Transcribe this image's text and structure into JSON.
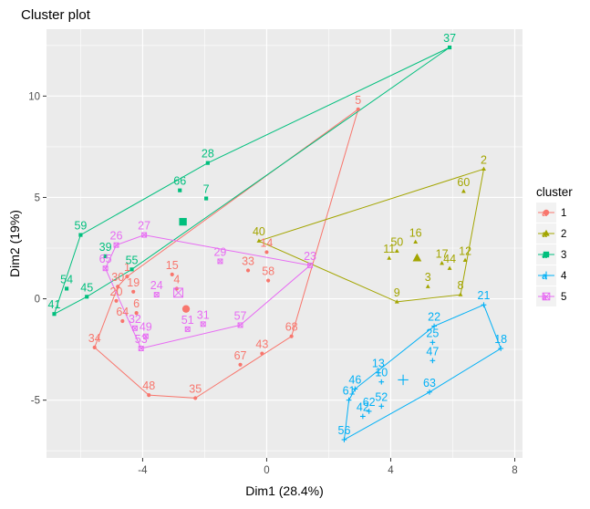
{
  "chart_data": {
    "type": "scatter",
    "title": "Cluster plot",
    "xlabel": "Dim1 (28.4%)",
    "ylabel": "Dim2 (19%)",
    "xlim": [
      -7.1,
      8.25
    ],
    "ylim": [
      -7.85,
      13.3
    ],
    "x_ticks": [
      -4,
      0,
      4,
      8
    ],
    "y_ticks": [
      -5,
      0,
      5,
      10
    ],
    "grid": true,
    "legend": {
      "title": "cluster",
      "position": "right",
      "entries": [
        "1",
        "2",
        "3",
        "4",
        "5"
      ]
    },
    "series": [
      {
        "name": "1",
        "color": "#F8766D",
        "marker": "circle",
        "centroid": [
          -2.6,
          -0.5
        ],
        "points": [
          {
            "label": "5",
            "x": 2.95,
            "y": 9.35
          },
          {
            "label": "14",
            "x": 0.0,
            "y": 2.3
          },
          {
            "label": "33",
            "x": -0.6,
            "y": 1.4
          },
          {
            "label": "58",
            "x": 0.05,
            "y": 0.9
          },
          {
            "label": "15",
            "x": -3.05,
            "y": 1.2
          },
          {
            "label": "1",
            "x": -4.5,
            "y": 1.1
          },
          {
            "label": "4",
            "x": -2.9,
            "y": 0.5
          },
          {
            "label": "30",
            "x": -4.8,
            "y": 0.6
          },
          {
            "label": "19",
            "x": -4.3,
            "y": 0.35
          },
          {
            "label": "20",
            "x": -4.85,
            "y": -0.1
          },
          {
            "label": "6",
            "x": -4.2,
            "y": -0.7
          },
          {
            "label": "64",
            "x": -4.65,
            "y": -1.1
          },
          {
            "label": "34",
            "x": -5.55,
            "y": -2.4
          },
          {
            "label": "48",
            "x": -3.8,
            "y": -4.75
          },
          {
            "label": "35",
            "x": -2.3,
            "y": -4.9
          },
          {
            "label": "67",
            "x": -0.85,
            "y": -3.25
          },
          {
            "label": "43",
            "x": -0.15,
            "y": -2.7
          },
          {
            "label": "68",
            "x": 0.8,
            "y": -1.85
          }
        ]
      },
      {
        "name": "2",
        "color": "#A3A500",
        "marker": "triangle",
        "centroid": [
          4.85,
          2.0
        ],
        "points": [
          {
            "label": "2",
            "x": 7.0,
            "y": 6.4
          },
          {
            "label": "60",
            "x": 6.35,
            "y": 5.3
          },
          {
            "label": "40",
            "x": -0.25,
            "y": 2.85
          },
          {
            "label": "16",
            "x": 4.8,
            "y": 2.8
          },
          {
            "label": "50",
            "x": 4.2,
            "y": 2.35
          },
          {
            "label": "11",
            "x": 3.95,
            "y": 2.0
          },
          {
            "label": "12",
            "x": 6.4,
            "y": 1.9
          },
          {
            "label": "17",
            "x": 5.65,
            "y": 1.75
          },
          {
            "label": "44",
            "x": 5.9,
            "y": 1.5
          },
          {
            "label": "3",
            "x": 5.2,
            "y": 0.6
          },
          {
            "label": "8",
            "x": 6.25,
            "y": 0.2
          },
          {
            "label": "9",
            "x": 4.2,
            "y": -0.15
          }
        ]
      },
      {
        "name": "3",
        "color": "#00BF7D",
        "marker": "square",
        "centroid": [
          -2.7,
          3.8
        ],
        "points": [
          {
            "label": "37",
            "x": 5.9,
            "y": 12.4
          },
          {
            "label": "28",
            "x": -1.9,
            "y": 6.7
          },
          {
            "label": "66",
            "x": -2.8,
            "y": 5.35
          },
          {
            "label": "7",
            "x": -1.95,
            "y": 4.95
          },
          {
            "label": "59",
            "x": -6.0,
            "y": 3.15
          },
          {
            "label": "39",
            "x": -5.2,
            "y": 2.1
          },
          {
            "label": "55",
            "x": -4.35,
            "y": 1.45
          },
          {
            "label": "54",
            "x": -6.45,
            "y": 0.5
          },
          {
            "label": "45",
            "x": -5.8,
            "y": 0.1
          },
          {
            "label": "41",
            "x": -6.85,
            "y": -0.75
          }
        ]
      },
      {
        "name": "4",
        "color": "#00B0F6",
        "marker": "plus",
        "centroid": [
          4.4,
          -4.0
        ],
        "points": [
          {
            "label": "21",
            "x": 7.0,
            "y": -0.3
          },
          {
            "label": "22",
            "x": 5.4,
            "y": -1.35
          },
          {
            "label": "18",
            "x": 7.55,
            "y": -2.45
          },
          {
            "label": "25",
            "x": 5.35,
            "y": -2.15
          },
          {
            "label": "47",
            "x": 5.35,
            "y": -3.05
          },
          {
            "label": "13",
            "x": 3.6,
            "y": -3.65
          },
          {
            "label": "10",
            "x": 3.7,
            "y": -4.1
          },
          {
            "label": "63",
            "x": 5.25,
            "y": -4.6
          },
          {
            "label": "46",
            "x": 2.85,
            "y": -4.45
          },
          {
            "label": "61",
            "x": 2.65,
            "y": -5.0
          },
          {
            "label": "52",
            "x": 3.7,
            "y": -5.3
          },
          {
            "label": "62",
            "x": 3.3,
            "y": -5.55
          },
          {
            "label": "42",
            "x": 3.1,
            "y": -5.8
          },
          {
            "label": "56",
            "x": 2.5,
            "y": -6.95
          }
        ]
      },
      {
        "name": "5",
        "color": "#E76BF3",
        "marker": "square-cross",
        "centroid": [
          -2.85,
          0.3
        ],
        "points": [
          {
            "label": "27",
            "x": -3.95,
            "y": 3.15
          },
          {
            "label": "26",
            "x": -4.85,
            "y": 2.65
          },
          {
            "label": "65",
            "x": -5.2,
            "y": 1.5
          },
          {
            "label": "29",
            "x": -1.5,
            "y": 1.85
          },
          {
            "label": "23",
            "x": 1.4,
            "y": 1.65
          },
          {
            "label": "24",
            "x": -3.55,
            "y": 0.2
          },
          {
            "label": "51",
            "x": -2.55,
            "y": -1.5
          },
          {
            "label": "31",
            "x": -2.05,
            "y": -1.25
          },
          {
            "label": "57",
            "x": -0.85,
            "y": -1.3
          },
          {
            "label": "32",
            "x": -4.25,
            "y": -1.45
          },
          {
            "label": "49",
            "x": -3.9,
            "y": -1.85
          },
          {
            "label": "53",
            "x": -4.05,
            "y": -2.45
          }
        ]
      }
    ]
  }
}
